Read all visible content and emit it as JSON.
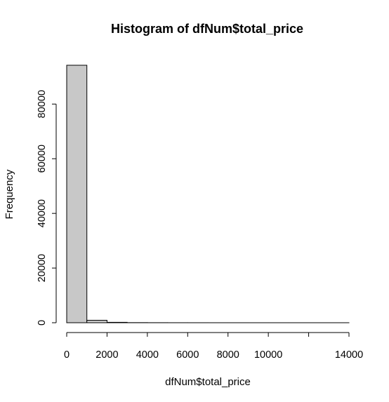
{
  "chart_data": {
    "type": "histogram",
    "title": "Histogram of dfNum$total_price",
    "xlabel": "dfNum$total_price",
    "ylabel": "Frequency",
    "bin_width": 1000,
    "bins": [
      {
        "start": 0,
        "end": 1000,
        "count": 94200
      },
      {
        "start": 1000,
        "end": 2000,
        "count": 900
      },
      {
        "start": 2000,
        "end": 3000,
        "count": 150
      },
      {
        "start": 3000,
        "end": 4000,
        "count": 40
      },
      {
        "start": 4000,
        "end": 5000,
        "count": 20
      },
      {
        "start": 5000,
        "end": 6000,
        "count": 10
      },
      {
        "start": 6000,
        "end": 7000,
        "count": 6
      },
      {
        "start": 7000,
        "end": 8000,
        "count": 4
      },
      {
        "start": 8000,
        "end": 9000,
        "count": 3
      },
      {
        "start": 9000,
        "end": 10000,
        "count": 2
      },
      {
        "start": 10000,
        "end": 11000,
        "count": 2
      },
      {
        "start": 11000,
        "end": 12000,
        "count": 1
      },
      {
        "start": 12000,
        "end": 13000,
        "count": 1
      },
      {
        "start": 13000,
        "end": 14000,
        "count": 1
      }
    ],
    "xlim": [
      0,
      14000
    ],
    "ylim": [
      0,
      94200
    ],
    "x_ticks": [
      0,
      2000,
      4000,
      6000,
      8000,
      10000,
      12000,
      14000
    ],
    "x_tick_labels": [
      "0",
      "2000",
      "4000",
      "6000",
      "8000",
      "10000",
      "",
      "14000"
    ],
    "y_ticks": [
      0,
      20000,
      40000,
      60000,
      80000
    ],
    "y_tick_labels": [
      "0",
      "20000",
      "40000",
      "60000",
      "80000"
    ],
    "bar_fill": "#c8c8c8",
    "bar_stroke": "#000000",
    "grid": false,
    "legend": "none"
  }
}
